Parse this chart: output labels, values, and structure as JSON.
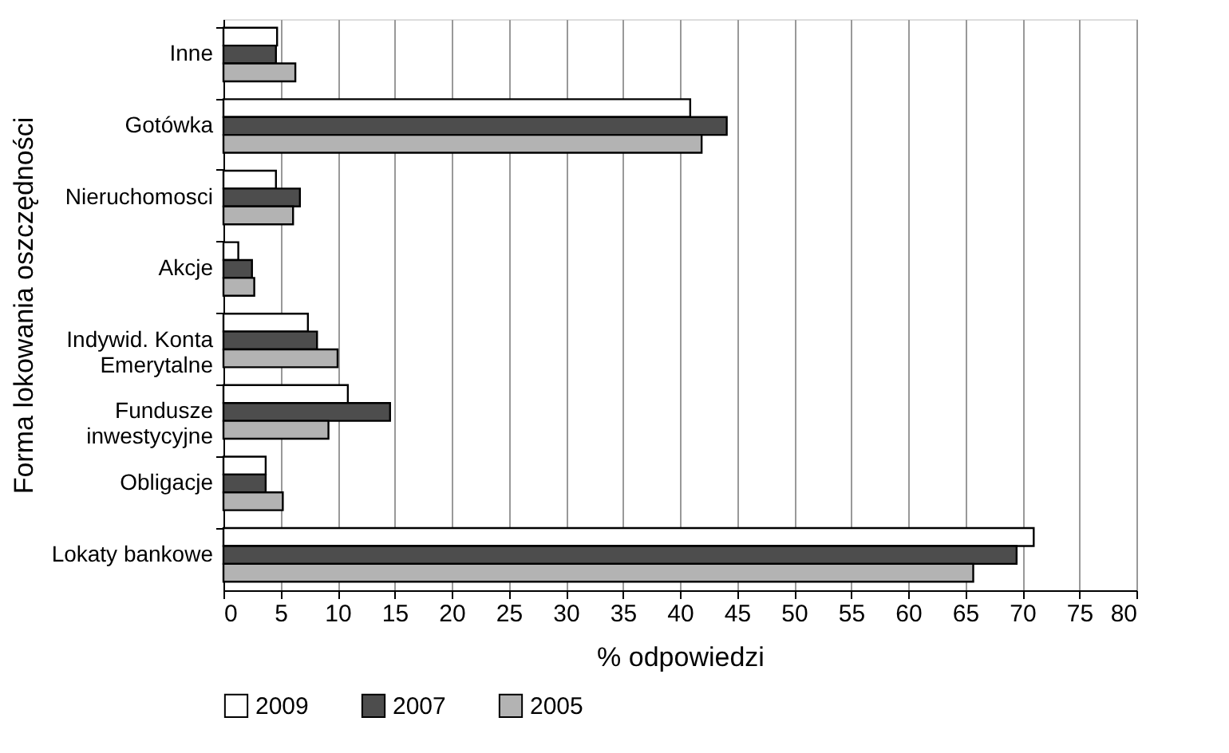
{
  "chart_data": {
    "type": "bar",
    "orientation": "horizontal",
    "xlabel": "% odpowiedzi",
    "ylabel": "Forma lokowania oszczędności",
    "categories": [
      "Inne",
      "Gotówka",
      "Nieruchomosci",
      "Akcje",
      "Indywid. Konta\nEmerytalne",
      "Fundusze\ninwestycyjne",
      "Obligacje",
      "Lokaty bankowe"
    ],
    "series": [
      {
        "name": "2009",
        "color": "#ffffff",
        "values": [
          4.7,
          40.9,
          4.6,
          1.3,
          7.4,
          10.9,
          3.7,
          71.0
        ]
      },
      {
        "name": "2007",
        "color": "#4d4d4d",
        "values": [
          4.6,
          44.1,
          6.7,
          2.5,
          8.2,
          14.6,
          3.7,
          69.5
        ]
      },
      {
        "name": "2005",
        "color": "#b3b3b3",
        "values": [
          6.3,
          41.9,
          6.1,
          2.7,
          10.0,
          9.2,
          5.2,
          65.7
        ]
      }
    ],
    "xlim": [
      0,
      80
    ],
    "xticks": [
      0,
      5,
      10,
      15,
      20,
      25,
      30,
      35,
      40,
      45,
      50,
      55,
      60,
      65,
      70,
      75,
      80
    ],
    "grid": "x",
    "legend": "bottom"
  }
}
